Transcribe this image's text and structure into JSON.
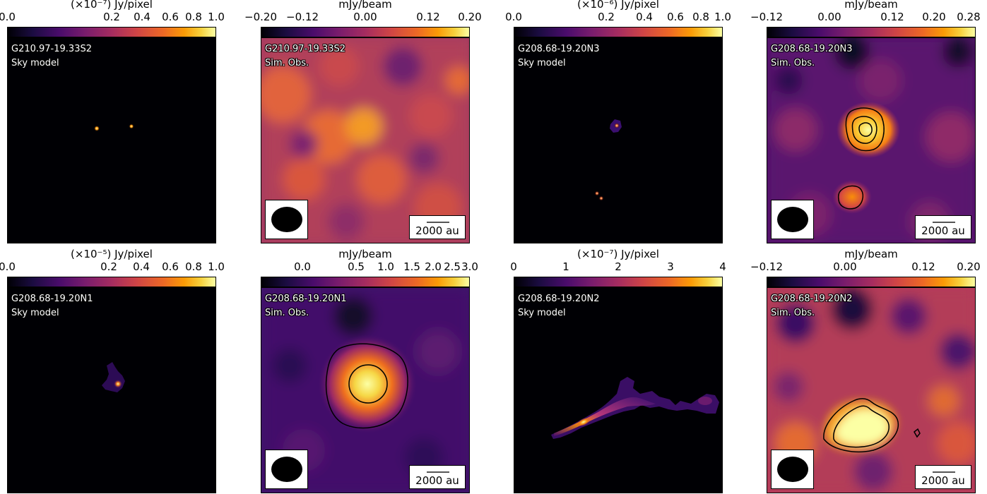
{
  "colors": {
    "colormap": "inferno",
    "background": "#000004",
    "contour": "#000000"
  },
  "panels": [
    {
      "id": "p1",
      "cb_title": "(×10⁻⁷) Jy/pixel",
      "ticks": [
        "0.0",
        "0.2",
        "0.4",
        "0.6",
        "0.8",
        "1.0"
      ],
      "source": "G210.97-19.33S2",
      "kind": "Sky model"
    },
    {
      "id": "p2",
      "cb_title": "mJy/beam",
      "ticks": [
        "−0.20",
        "−0.12",
        "0.00",
        "0.12",
        "0.20"
      ],
      "source": "G210.97-19.33S2",
      "kind": "Sim. Obs.",
      "scalebar": "2000 au"
    },
    {
      "id": "p3",
      "cb_title": "(×10⁻⁶) Jy/pixel",
      "ticks": [
        "0.0",
        "0.2",
        "0.4",
        "0.6",
        "0.8",
        "1.0"
      ],
      "source": "G208.68-19.20N3",
      "kind": "Sky model"
    },
    {
      "id": "p4",
      "cb_title": "mJy/beam",
      "ticks": [
        "−0.12",
        "0.00",
        "0.12",
        "0.20",
        "0.28"
      ],
      "source": "G208.68-19.20N3",
      "kind": "Sim. Obs.",
      "scalebar": "2000 au"
    },
    {
      "id": "p5",
      "cb_title": "(×10⁻⁵) Jy/pixel",
      "ticks": [
        "0.0",
        "0.2",
        "0.4",
        "0.6",
        "0.8",
        "1.0"
      ],
      "source": "G208.68-19.20N1",
      "kind": "Sky model"
    },
    {
      "id": "p6",
      "cb_title": "mJy/beam",
      "ticks": [
        "0.0",
        "0.5",
        "1.0",
        "1.5",
        "2.0",
        "2.5",
        "3.0"
      ],
      "source": "G208.68-19.20N1",
      "kind": "Sim. Obs.",
      "scalebar": "2000 au"
    },
    {
      "id": "p7",
      "cb_title": "(×10⁻⁷) Jy/pixel",
      "ticks": [
        "0",
        "1",
        "2",
        "3",
        "4"
      ],
      "source": "G208.68-19.20N2",
      "kind": "Sky model"
    },
    {
      "id": "p8",
      "cb_title": "mJy/beam",
      "ticks": [
        "−0.12",
        "0.00",
        "0.12",
        "0.20"
      ],
      "source": "G208.68-19.20N2",
      "kind": "Sim. Obs.",
      "scalebar": "2000 au"
    }
  ]
}
